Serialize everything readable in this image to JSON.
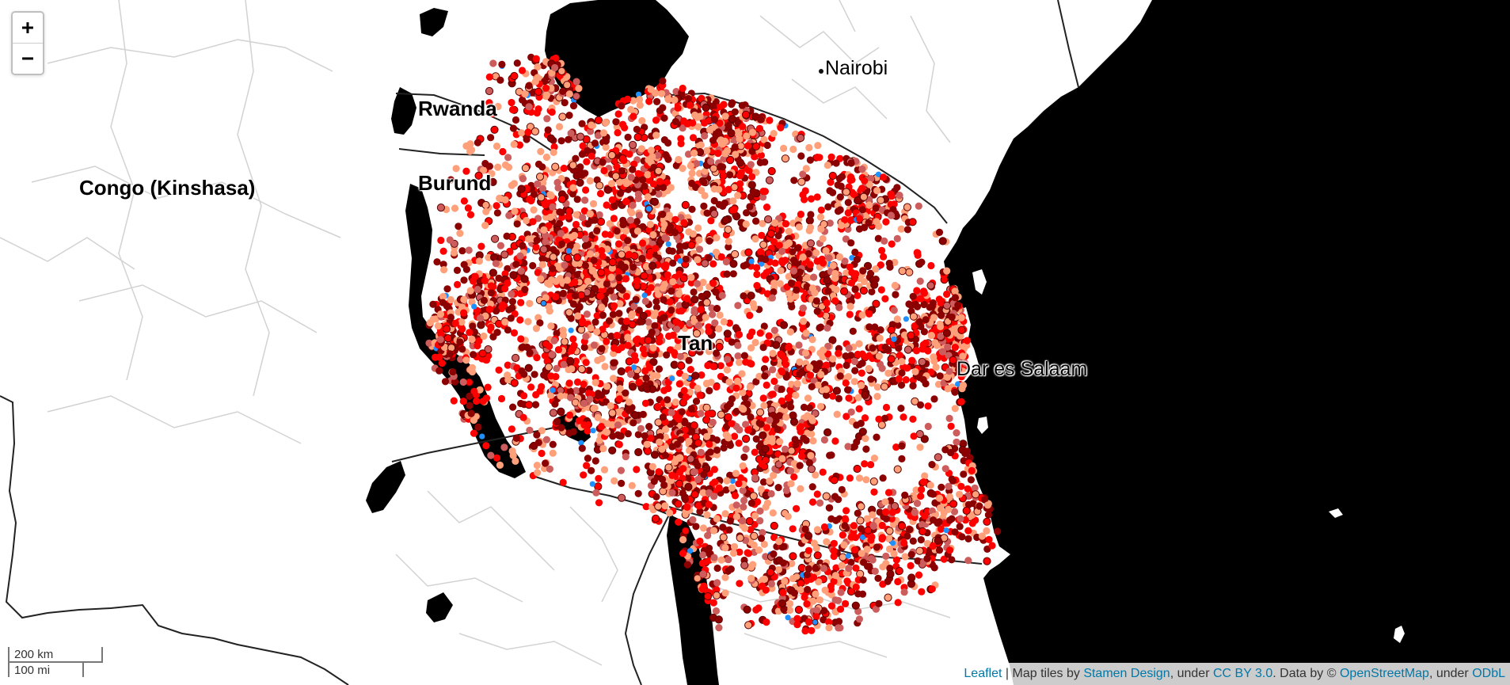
{
  "map": {
    "labels": {
      "nairobi": "Nairobi",
      "rwanda": "Rwanda",
      "burundi": "Burund",
      "congo": "Congo (Kinshasa)",
      "tanzania": "Tan",
      "dar": "Dar es Salaam"
    },
    "point_colors": [
      "#8b0000",
      "#ff0000",
      "#ffa07a",
      "#cd5c5c",
      "#1e90ff"
    ],
    "ocean_color": "#000000",
    "land_color": "#ffffff"
  },
  "zoom": {
    "in_label": "+",
    "out_label": "−"
  },
  "scale": {
    "km_label": "200 km",
    "mi_label": "100 mi"
  },
  "attribution": {
    "leaflet": "Leaflet",
    "sep1": " | Map tiles by ",
    "stamen": "Stamen Design",
    "sep2": ", under ",
    "ccby": "CC BY 3.0",
    "sep3": ". Data by © ",
    "osm": "OpenStreetMap",
    "sep4": ", under ",
    "odbl": "ODbL"
  }
}
